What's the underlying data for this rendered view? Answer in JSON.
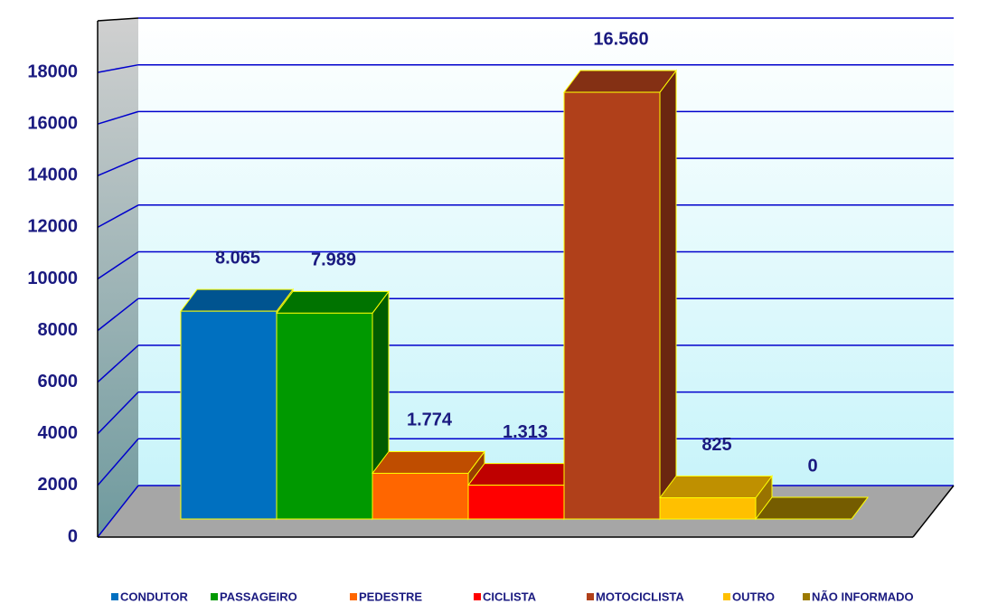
{
  "chart_data": {
    "type": "bar3d",
    "series": [
      {
        "name": "CONDUTOR",
        "color": "#0070c0",
        "values": [
          8065
        ],
        "value_labels": [
          "8.065"
        ]
      },
      {
        "name": "PASSAGEIRO",
        "color": "#009900",
        "values": [
          7989
        ],
        "value_labels": [
          "7.989"
        ]
      },
      {
        "name": "PEDESTRE",
        "color": "#ff6600",
        "values": [
          1774
        ],
        "value_labels": [
          "1.774"
        ]
      },
      {
        "name": "CICLISTA",
        "color": "#ff0000",
        "values": [
          1313
        ],
        "value_labels": [
          "1.313"
        ]
      },
      {
        "name": "MOTOCICLISTA",
        "color": "#b0401a",
        "values": [
          16560
        ],
        "value_labels": [
          "16.560"
        ]
      },
      {
        "name": "OUTRO",
        "color": "#ffc000",
        "values": [
          825
        ],
        "value_labels": [
          "825"
        ]
      },
      {
        "name": "NÃO INFORMADO",
        "color": "#9c7a00",
        "values": [
          0
        ],
        "value_labels": [
          "0"
        ]
      }
    ],
    "ylim": [
      0,
      20000
    ],
    "yticks": [
      0,
      2000,
      4000,
      6000,
      8000,
      10000,
      12000,
      14000,
      16000,
      18000
    ],
    "grid": true,
    "legend": "bottom"
  }
}
